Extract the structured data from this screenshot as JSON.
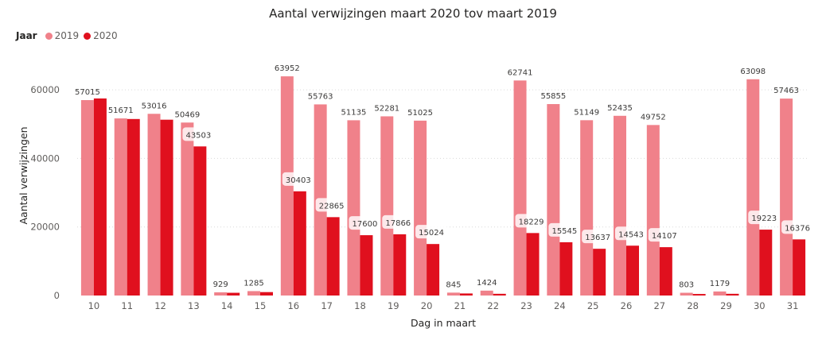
{
  "chart_data": {
    "type": "bar",
    "title": "Aantal verwijzingen maart 2020 tov maart 2019",
    "legend": {
      "title": "Jaar",
      "position": "top-left"
    },
    "xlabel": "Dag in maart",
    "ylabel": "Aantal verwijzingen",
    "ylim": [
      0,
      70000
    ],
    "yticks": [
      0,
      20000,
      40000,
      60000
    ],
    "grid": true,
    "categories": [
      "10",
      "11",
      "12",
      "13",
      "14",
      "15",
      "16",
      "17",
      "18",
      "19",
      "20",
      "21",
      "22",
      "23",
      "24",
      "25",
      "26",
      "27",
      "28",
      "29",
      "30",
      "31"
    ],
    "series": [
      {
        "name": "2019",
        "color": "#F0818A",
        "values": [
          57015,
          51671,
          53016,
          50469,
          929,
          1285,
          63952,
          55763,
          51135,
          52281,
          51025,
          845,
          1424,
          62741,
          55855,
          51149,
          52435,
          49752,
          803,
          1179,
          63098,
          57463
        ],
        "labels": [
          "57015",
          "51671",
          "53016",
          "50469",
          "929",
          "1285",
          "63952",
          "55763",
          "51135",
          "52281",
          "51025",
          "845",
          "1424",
          "62741",
          "55855",
          "51149",
          "52435",
          "49752",
          "803",
          "1179",
          "63098",
          "57463"
        ]
      },
      {
        "name": "2020",
        "color": "#E0101E",
        "values": [
          57500,
          51500,
          51300,
          43503,
          800,
          1000,
          30403,
          22865,
          17600,
          17866,
          15024,
          600,
          500,
          18229,
          15545,
          13637,
          14543,
          14107,
          450,
          500,
          19223,
          16376
        ],
        "labels": [
          "",
          "",
          "",
          "43503",
          "",
          "",
          "30403",
          "22865",
          "17600",
          "17866",
          "15024",
          "",
          "",
          "18229",
          "15545",
          "13637",
          "14543",
          "14107",
          "",
          "",
          "19223",
          "16376"
        ]
      }
    ]
  }
}
